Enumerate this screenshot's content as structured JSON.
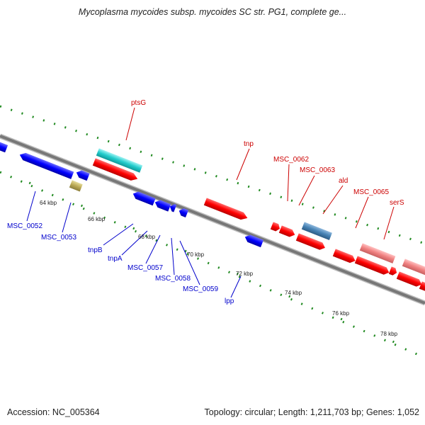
{
  "map": {
    "title": "Mycoplasma mycoides subsp. mycoides SC str. PG1, complete ge...",
    "accession": "Accession: NC_005364",
    "summary": "Topology: circular; Length: 1,211,703 bp; Genes: 1,052"
  },
  "colors": {
    "backbone": "#888888",
    "tick": "#228b22",
    "forward_gene": "#ff0000",
    "reverse_gene": "#0000ff",
    "forward_label": "#cc0000",
    "reverse_label": "#0000cc",
    "cyan_feature": "#22cccc",
    "olive_feature": "#bbaa55",
    "steelblue_feature": "#4682b4",
    "pink_feature": "#f08080"
  },
  "scale": {
    "ticks": [
      {
        "kbp": 64,
        "label": "64 kbp"
      },
      {
        "kbp": 66,
        "label": "66 kbp"
      },
      {
        "kbp": 68,
        "label": "68 kbp"
      },
      {
        "kbp": 70,
        "label": "70 kbp"
      },
      {
        "kbp": 72,
        "label": "72 kbp"
      },
      {
        "kbp": 74,
        "label": "74 kbp"
      },
      {
        "kbp": 76,
        "label": "76 kbp"
      },
      {
        "kbp": 78,
        "label": "78 kbp"
      }
    ]
  },
  "forward_labels": [
    {
      "id": "ptsG",
      "text": "ptsG"
    },
    {
      "id": "tnp",
      "text": "tnp"
    },
    {
      "id": "msc-0062",
      "text": "MSC_0062"
    },
    {
      "id": "msc-0063",
      "text": "MSC_0063"
    },
    {
      "id": "ald",
      "text": "ald"
    },
    {
      "id": "msc-0065",
      "text": "MSC_0065"
    },
    {
      "id": "serS",
      "text": "serS"
    }
  ],
  "reverse_labels": [
    {
      "id": "msc-0052",
      "text": "MSC_0052"
    },
    {
      "id": "msc-0053",
      "text": "MSC_0053"
    },
    {
      "id": "tnpB",
      "text": "tnpB"
    },
    {
      "id": "tnpA",
      "text": "tnpA"
    },
    {
      "id": "msc-0057",
      "text": "MSC_0057"
    },
    {
      "id": "msc-0058",
      "text": "MSC_0058"
    },
    {
      "id": "msc-0059",
      "text": "MSC_0059"
    },
    {
      "id": "lpp",
      "text": "lpp"
    }
  ]
}
